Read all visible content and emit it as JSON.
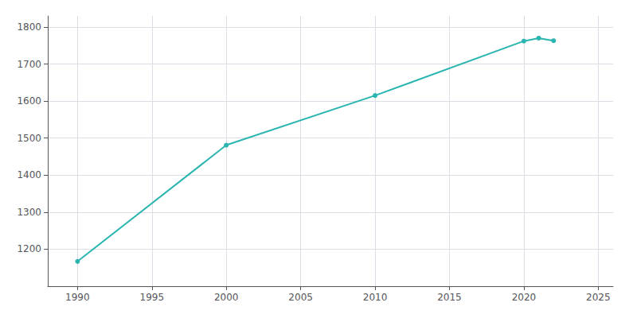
{
  "chart_data": {
    "type": "line",
    "x": [
      1990,
      2000,
      2010,
      2020,
      2021,
      2022
    ],
    "values": [
      1167,
      1481,
      1615,
      1762,
      1770,
      1763
    ],
    "color": "#2ab5b0",
    "marker": "circle",
    "xlim": [
      1988,
      2026
    ],
    "ylim": [
      1100,
      1830
    ],
    "xticks": [
      1990,
      1995,
      2000,
      2005,
      2010,
      2015,
      2020,
      2025
    ],
    "yticks": [
      1200,
      1300,
      1400,
      1500,
      1600,
      1700,
      1800
    ],
    "grid": true
  }
}
